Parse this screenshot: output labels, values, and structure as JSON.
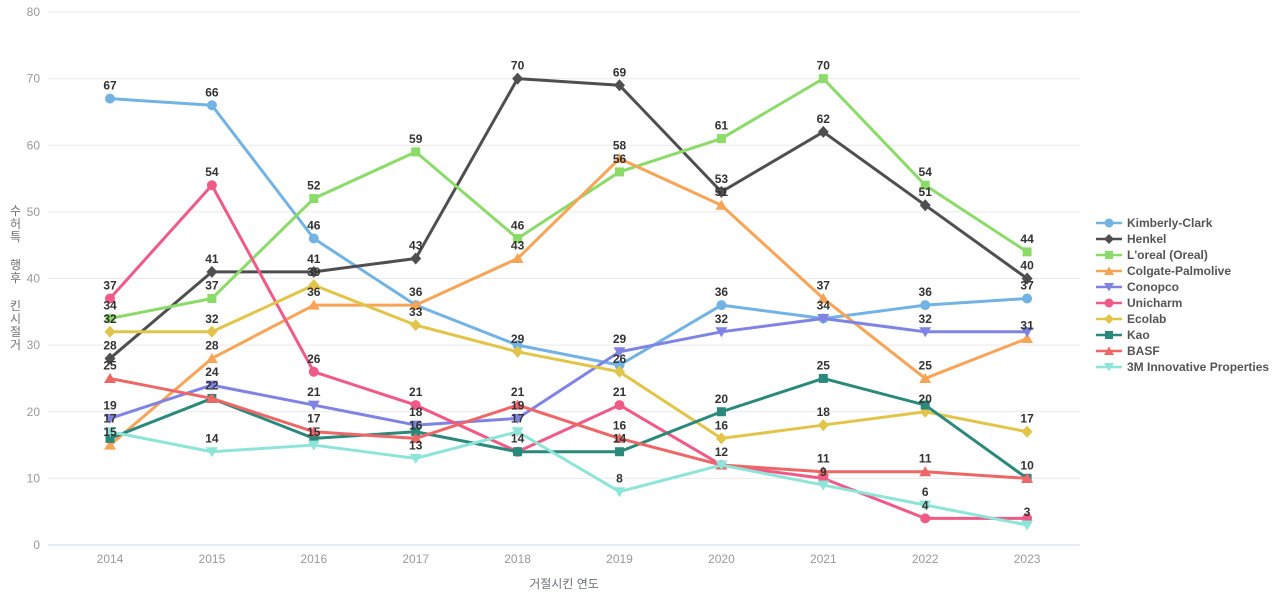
{
  "chart_data": {
    "type": "line",
    "title": "",
    "xlabel": "거절시킨 연도",
    "ylabel": "거절시킨 후행 특허수",
    "x": [
      "2014",
      "2015",
      "2016",
      "2017",
      "2018",
      "2019",
      "2020",
      "2021",
      "2022",
      "2023"
    ],
    "ylim": [
      0,
      80
    ],
    "yticks": [
      0,
      10,
      20,
      30,
      40,
      50,
      60,
      70,
      80
    ],
    "grid": true,
    "legend_position": "right",
    "axis_line_color": "#ccd6eb",
    "grid_line_color": "#e9e9e9",
    "label_color": "#333333",
    "series": [
      {
        "name": "Kimberly-Clark",
        "symbol": "circle",
        "color": "#73b3e3",
        "values": [
          67,
          66,
          46,
          36,
          30,
          27,
          36,
          34,
          36,
          37
        ]
      },
      {
        "name": "Henkel",
        "symbol": "diamond",
        "color": "#4f4f4f",
        "values": [
          28,
          41,
          41,
          43,
          70,
          69,
          53,
          62,
          51,
          40
        ]
      },
      {
        "name": "L'oreal (Oreal)",
        "symbol": "square",
        "color": "#8bdb68",
        "values": [
          34,
          37,
          52,
          59,
          46,
          56,
          61,
          70,
          54,
          44
        ]
      },
      {
        "name": "Colgate-Palmolive",
        "symbol": "triangle",
        "color": "#f8a457",
        "values": [
          15,
          28,
          36,
          36,
          43,
          58,
          51,
          37,
          25,
          31
        ]
      },
      {
        "name": "Conopco",
        "symbol": "triangle-down",
        "color": "#7f84e4",
        "values": [
          19,
          24,
          21,
          18,
          19,
          29,
          32,
          34,
          32,
          32
        ]
      },
      {
        "name": "Unicharm",
        "symbol": "circle",
        "color": "#ef5a87",
        "values": [
          37,
          54,
          26,
          21,
          14,
          21,
          12,
          10,
          4,
          4
        ]
      },
      {
        "name": "Ecolab",
        "symbol": "diamond",
        "color": "#e2c548",
        "values": [
          32,
          32,
          39,
          33,
          29,
          26,
          16,
          18,
          20,
          17
        ]
      },
      {
        "name": "Kao",
        "symbol": "square",
        "color": "#2b897c",
        "values": [
          16,
          22,
          16,
          17,
          14,
          14,
          20,
          25,
          21,
          10
        ]
      },
      {
        "name": "BASF",
        "symbol": "triangle",
        "color": "#ee6666",
        "values": [
          25,
          22,
          17,
          16,
          21,
          16,
          12,
          11,
          11,
          10
        ]
      },
      {
        "name": "3M Innovative Properties",
        "symbol": "triangle-down",
        "color": "#8de5d9",
        "values": [
          17,
          14,
          15,
          13,
          17,
          8,
          12,
          9,
          6,
          3
        ]
      }
    ]
  }
}
